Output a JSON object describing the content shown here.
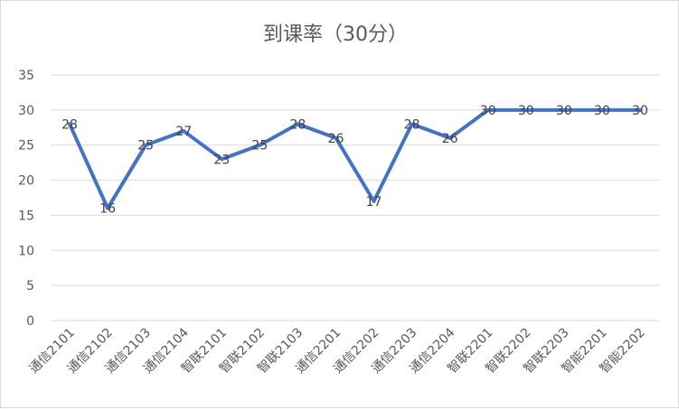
{
  "chart_data": {
    "type": "line",
    "title": "到课率（30分）",
    "xlabel": "",
    "ylabel": "",
    "ylim": [
      0,
      35
    ],
    "yticks": [
      0,
      5,
      10,
      15,
      20,
      25,
      30,
      35
    ],
    "grid": true,
    "legend": "none",
    "categories": [
      "通信2101",
      "通信2102",
      "通信2103",
      "通信2104",
      "智联2101",
      "智联2102",
      "智联2103",
      "通信2201",
      "通信2202",
      "通信2203",
      "通信2204",
      "智联2201",
      "智联2202",
      "智联2203",
      "智能2201",
      "智能2202"
    ],
    "series": [
      {
        "values": [
          28,
          16,
          25,
          27,
          23,
          25,
          28,
          26,
          17,
          28,
          26,
          30,
          30,
          30,
          30,
          30
        ],
        "color": "#4472c4"
      }
    ]
  }
}
